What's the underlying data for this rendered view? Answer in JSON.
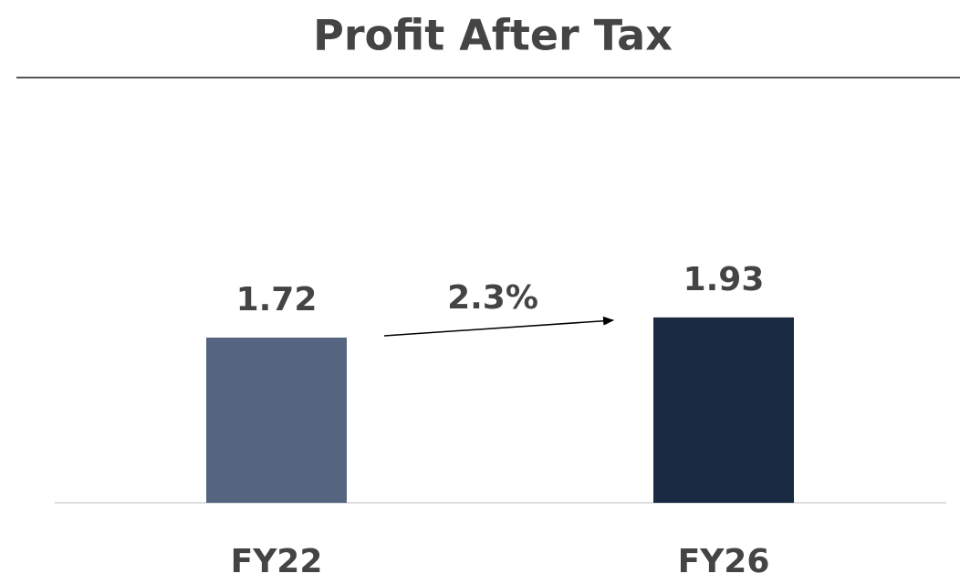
{
  "chart_data": {
    "type": "bar",
    "title": "Profit After Tax",
    "categories": [
      "FY22",
      "FY26"
    ],
    "values": [
      1.72,
      1.93
    ],
    "colors": [
      "#56657f",
      "#1b2a43"
    ],
    "annotation": "2.3%",
    "ylim": [
      0,
      4
    ]
  }
}
